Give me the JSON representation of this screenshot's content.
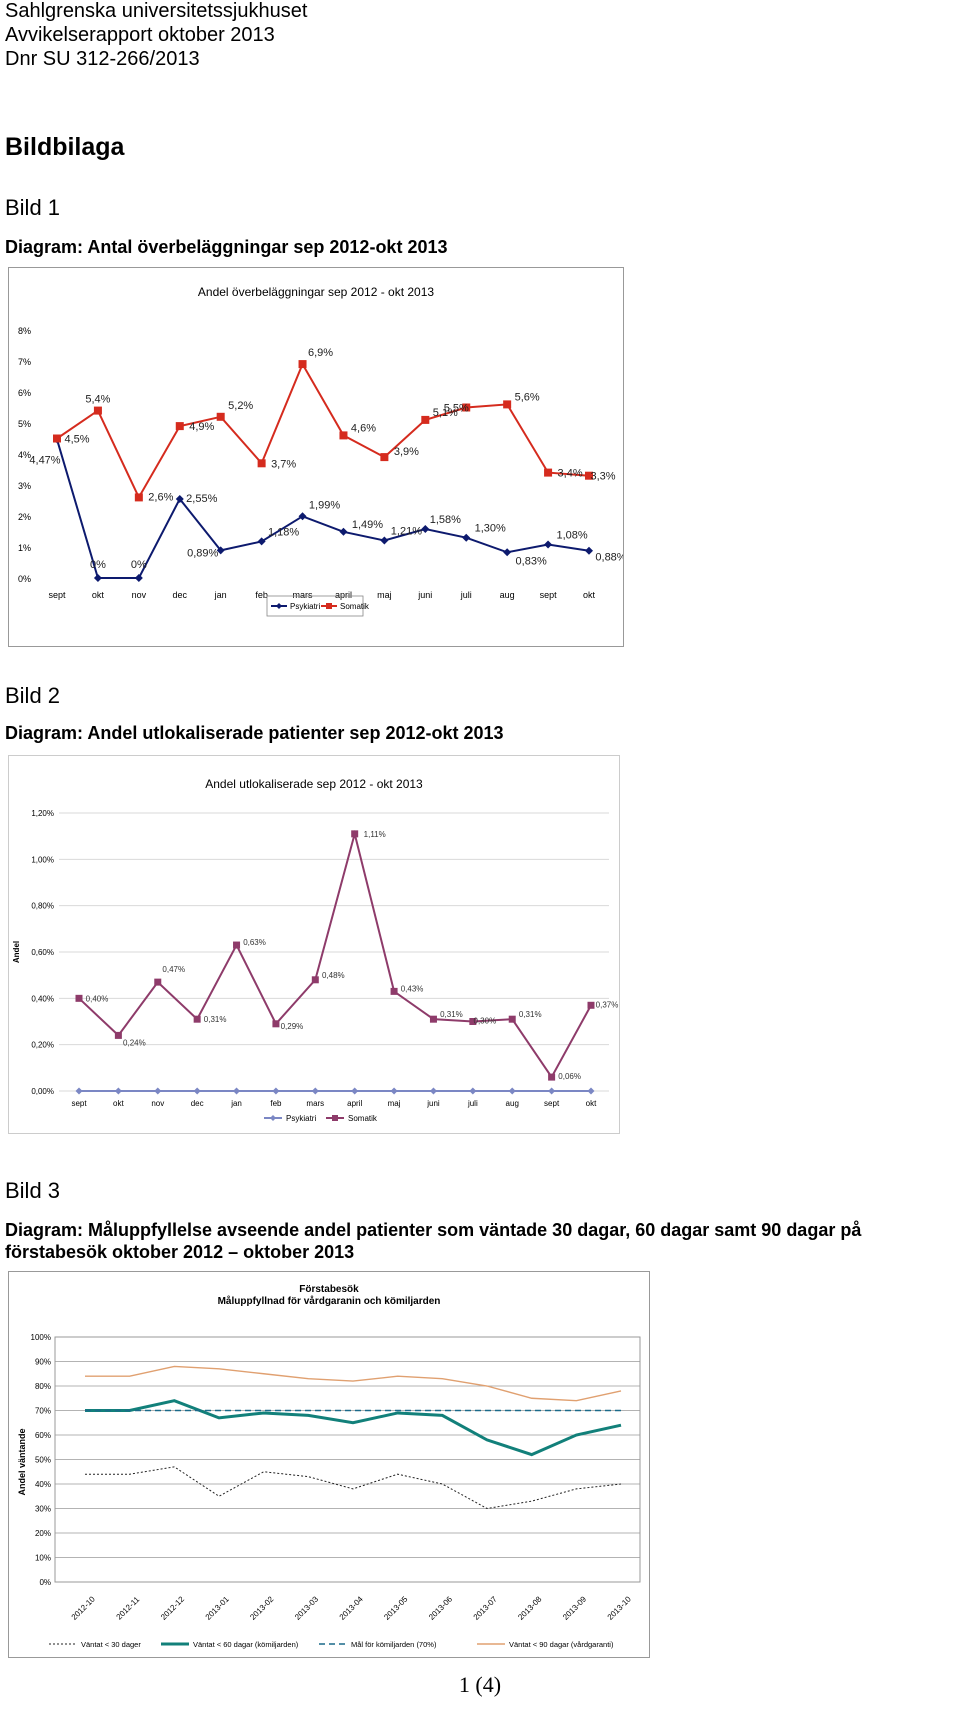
{
  "header": {
    "line1": "Sahlgrenska universitetssjukhuset",
    "line2": "Avvikelserapport oktober 2013",
    "line3": "Dnr SU 312-266/2013"
  },
  "section_title": "Bildbilaga",
  "figures": [
    {
      "label": "Bild 1",
      "caption": "Diagram: Antal överbeläggningar sep 2012-okt 2013"
    },
    {
      "label": "Bild 2",
      "caption": "Diagram: Andel utlokaliserade patienter sep 2012-okt 2013"
    },
    {
      "label": "Bild 3",
      "caption": "Diagram: Måluppfyllelse avseende andel patienter som väntade 30 dagar, 60 dagar samt 90 dagar på förstabesök oktober 2012 – oktober 2013"
    }
  ],
  "page_number": "1 (4)",
  "chart_data": [
    {
      "type": "line",
      "title": "Andel överbeläggningar sep 2012 - okt 2013",
      "categories": [
        "sept",
        "okt",
        "nov",
        "dec",
        "jan",
        "feb",
        "mars",
        "april",
        "maj",
        "juni",
        "juli",
        "aug",
        "sept",
        "okt"
      ],
      "ylim": [
        0,
        8
      ],
      "yticks": [
        "0%",
        "1%",
        "2%",
        "3%",
        "4%",
        "5%",
        "6%",
        "7%",
        "8%"
      ],
      "legend": "bottom",
      "series": [
        {
          "name": "Psykiatri",
          "color": "#0d1a6e",
          "values": [
            4.47,
            0,
            0,
            2.55,
            0.89,
            1.18,
            1.99,
            1.49,
            1.21,
            1.58,
            1.3,
            0.83,
            1.08,
            0.88
          ],
          "labels": [
            "4,47%",
            "0%",
            "0%",
            "2,55%",
            "0,89%",
            "1,18%",
            "1,99%",
            "1,49%",
            "1,21%",
            "1,58%",
            "1,30%",
            "0,83%",
            "1,08%",
            "0,88%"
          ]
        },
        {
          "name": "Somatik",
          "color": "#d52b1e",
          "values": [
            4.5,
            5.4,
            2.6,
            4.9,
            5.2,
            3.7,
            6.9,
            4.6,
            3.9,
            5.1,
            5.5,
            5.6,
            3.4,
            3.3
          ],
          "labels": [
            "4,5%",
            "5,4%",
            "2,6%",
            "4,9%",
            "5,2%",
            "3,7%",
            "6,9%",
            "4,6%",
            "3,9%",
            "5,1%",
            "5,5%",
            "5,6%",
            "3,4%",
            "3,3%"
          ]
        }
      ]
    },
    {
      "type": "line",
      "title": "Andel utlokaliserade sep 2012 - okt 2013",
      "ylabel": "Andel",
      "categories": [
        "sept",
        "okt",
        "nov",
        "dec",
        "jan",
        "feb",
        "mars",
        "april",
        "maj",
        "juni",
        "juli",
        "aug",
        "sept",
        "okt"
      ],
      "ylim": [
        0,
        1.2
      ],
      "yticks": [
        "0,00%",
        "0,20%",
        "0,40%",
        "0,60%",
        "0,80%",
        "1,00%",
        "1,20%"
      ],
      "grid": true,
      "legend": "bottom",
      "series": [
        {
          "name": "Psykiatri",
          "color": "#7b87c4",
          "values": [
            0,
            0,
            0,
            0,
            0,
            0,
            0,
            0,
            0,
            0,
            0,
            0,
            0,
            0
          ]
        },
        {
          "name": "Somatik",
          "color": "#8e3b6a",
          "values": [
            0.4,
            0.24,
            0.47,
            0.31,
            0.63,
            0.29,
            0.48,
            1.11,
            0.43,
            0.31,
            0.3,
            0.31,
            0.06,
            0.37
          ],
          "labels": [
            "0,40%",
            "0,24%",
            "0,47%",
            "0,31%",
            "0,63%",
            "0,29%",
            "0,48%",
            "1,11%",
            "0,43%",
            "0,31%",
            "0,30%",
            "0,31%",
            "0,06%",
            "0,37%"
          ]
        }
      ]
    },
    {
      "type": "line",
      "title": "Förstabesök",
      "subtitle": "Måluppfyllnad för vårdgaranin och kömiljarden",
      "ylabel": "Andel väntande",
      "categories": [
        "2012-10",
        "2012-11",
        "2012-12",
        "2013-01",
        "2013-02",
        "2013-03",
        "2013-04",
        "2013-05",
        "2013-06",
        "2013-07",
        "2013-08",
        "2013-09",
        "2013-10"
      ],
      "ylim": [
        0,
        100
      ],
      "yticks": [
        "0%",
        "10%",
        "20%",
        "30%",
        "40%",
        "50%",
        "60%",
        "70%",
        "80%",
        "90%",
        "100%"
      ],
      "grid": true,
      "legend": "bottom",
      "series": [
        {
          "name": "Väntat < 30 dager",
          "color": "#222222",
          "style": "dotted",
          "values": [
            44,
            44,
            47,
            35,
            45,
            43,
            38,
            44,
            40,
            30,
            33,
            38,
            40
          ]
        },
        {
          "name": "Väntat < 60 dagar (kömiljarden)",
          "color": "#12807a",
          "style": "solid",
          "values": [
            70,
            70,
            74,
            67,
            69,
            68,
            65,
            69,
            68,
            58,
            52,
            60,
            64
          ]
        },
        {
          "name": "Mål för kömiljarden (70%)",
          "color": "#1a6a8a",
          "style": "dashed",
          "values": [
            70,
            70,
            70,
            70,
            70,
            70,
            70,
            70,
            70,
            70,
            70,
            70,
            70
          ]
        },
        {
          "name": "Väntat < 90 dagar (vårdgaranti)",
          "color": "#e0a070",
          "style": "solid",
          "values": [
            84,
            84,
            88,
            87,
            85,
            83,
            82,
            84,
            83,
            80,
            75,
            74,
            78
          ]
        }
      ]
    }
  ]
}
